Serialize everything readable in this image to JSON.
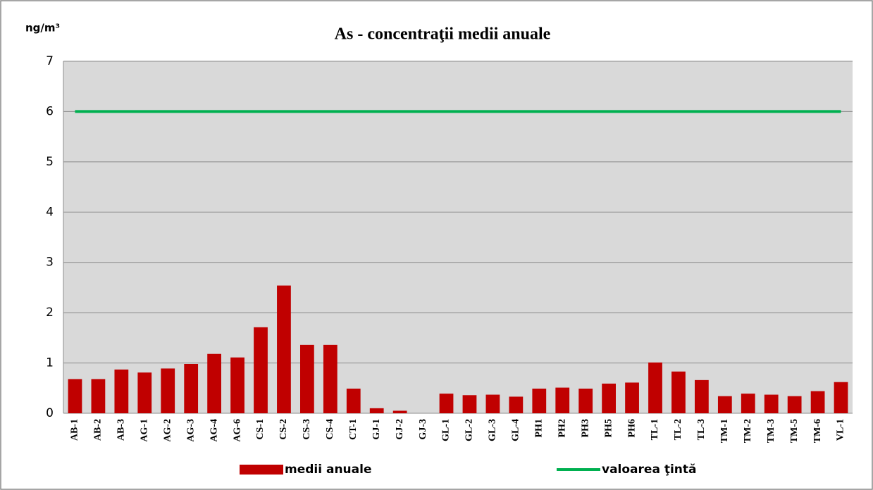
{
  "chart_data": {
    "type": "bar_line",
    "title": "As - concentraţii medii anuale",
    "y_label": "ng/m³",
    "categories": [
      "AB-1",
      "AB-2",
      "AB-3",
      "AG-1",
      "AG-2",
      "AG-3",
      "AG-4",
      "AG-6",
      "CS-1",
      "CS-2",
      "CS-3",
      "CS-4",
      "CT-1",
      "GJ-1",
      "GJ-2",
      "GJ-3",
      "GL-1",
      "GL-2",
      "GL-3",
      "GL-4",
      "PH1",
      "PH2",
      "PH3",
      "PH5",
      "PH6",
      "TL-1",
      "TL-2",
      "TL-3",
      "TM-1",
      "TM-2",
      "TM-3",
      "TM-5",
      "TM-6",
      "VL-1"
    ],
    "series": [
      {
        "name": "medii anuale",
        "type": "bar",
        "color": "#c00000",
        "values": [
          0.68,
          0.68,
          0.87,
          0.81,
          0.89,
          0.98,
          1.18,
          1.11,
          1.71,
          2.54,
          1.36,
          1.36,
          0.49,
          0.1,
          0.05,
          0,
          0.39,
          0.36,
          0.37,
          0.33,
          0.49,
          0.51,
          0.49,
          0.59,
          0.61,
          1.01,
          0.83,
          0.66,
          0.34,
          0.39,
          0.37,
          0.34,
          0.44,
          0.62
        ]
      },
      {
        "name": "valoarea ţintă",
        "type": "line",
        "color": "#00b050",
        "values": [
          6,
          6,
          6,
          6,
          6,
          6,
          6,
          6,
          6,
          6,
          6,
          6,
          6,
          6,
          6,
          6,
          6,
          6,
          6,
          6,
          6,
          6,
          6,
          6,
          6,
          6,
          6,
          6,
          6,
          6,
          6,
          6,
          6,
          6
        ]
      }
    ],
    "ylim": [
      0,
      7
    ],
    "yticks": [
      0,
      1,
      2,
      3,
      4,
      5,
      6,
      7
    ],
    "grid": true,
    "legend": "bottom"
  }
}
